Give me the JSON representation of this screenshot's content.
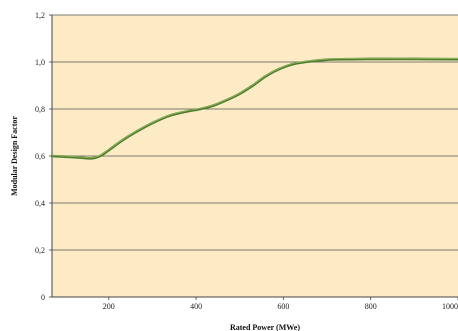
{
  "chart_data": {
    "type": "line",
    "title": "",
    "xlabel": "Rated Power (MWe)",
    "ylabel": "Modular Design Factor",
    "xlim": [
      70,
      1000
    ],
    "ylim": [
      0,
      1.2
    ],
    "x_ticks": [
      200,
      400,
      600,
      800,
      1000
    ],
    "x_tick_labels": [
      "200",
      "400",
      "600",
      "800",
      "1000"
    ],
    "y_ticks": [
      0,
      0.2,
      0.4,
      0.6,
      0.8,
      1.0,
      1.2
    ],
    "y_tick_labels": [
      "0",
      "0,2",
      "0,4",
      "0,6",
      "0,8",
      "1,0",
      "1,2"
    ],
    "grid": "horizontal",
    "legend": "none",
    "colors": {
      "plot_background": "#FCEBC4",
      "gridline": "#555555",
      "axis": "#444444",
      "line_main": "#4E7D2E",
      "line_highlight": "#9BC066"
    },
    "series": [
      {
        "x": [
          70,
          100,
          130,
          160,
          180,
          200,
          230,
          260,
          300,
          340,
          380,
          410,
          440,
          470,
          500,
          530,
          560,
          590,
          620,
          650,
          700,
          750,
          800,
          900,
          1000
        ],
        "y": [
          0.6,
          0.597,
          0.594,
          0.59,
          0.6,
          0.625,
          0.665,
          0.7,
          0.74,
          0.772,
          0.79,
          0.8,
          0.815,
          0.838,
          0.865,
          0.9,
          0.94,
          0.97,
          0.99,
          1.0,
          1.01,
          1.012,
          1.013,
          1.013,
          1.012
        ]
      }
    ]
  }
}
